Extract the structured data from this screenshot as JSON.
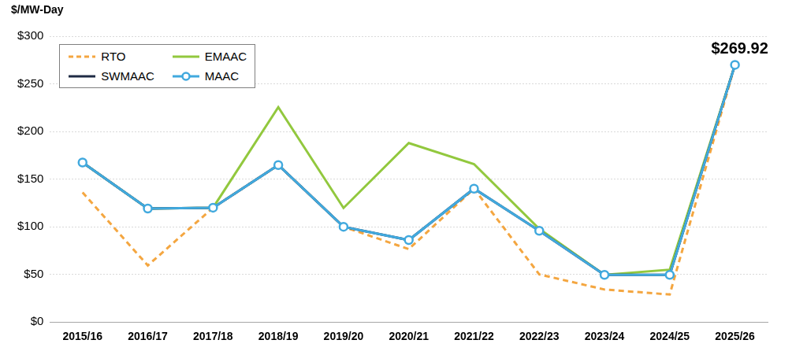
{
  "chart_data": {
    "type": "line",
    "y_label": "$/MW-Day",
    "categories": [
      "2015/16",
      "2016/17",
      "2017/18",
      "2018/19",
      "2019/20",
      "2020/21",
      "2021/22",
      "2022/23",
      "2023/24",
      "2024/25",
      "2025/26"
    ],
    "series": [
      {
        "name": "RTO",
        "color": "#f4a640",
        "line_style": "dashed",
        "marker": "none",
        "values": [
          136,
          59.37,
          120,
          164.77,
          100,
          76.53,
          140,
          50,
          34.13,
          28.92,
          269.92
        ]
      },
      {
        "name": "EMAAC",
        "color": "#92c83e",
        "line_style": "solid",
        "marker": "none",
        "values": [
          167.46,
          119.13,
          120,
          225.42,
          119.77,
          187.87,
          165.73,
          97.86,
          49.49,
          54.95,
          269.92
        ]
      },
      {
        "name": "SWMAAC",
        "color": "#1f2a44",
        "line_style": "solid",
        "marker": "none",
        "values": [
          167.46,
          119.13,
          120,
          164.77,
          100,
          86.04,
          140,
          95.79,
          49.49,
          49.49,
          269.92
        ]
      },
      {
        "name": "MAAC",
        "color": "#41a9de",
        "line_style": "solid",
        "marker": "circle",
        "values": [
          167.46,
          119.13,
          120,
          164.77,
          100,
          86.04,
          140,
          95.79,
          49.49,
          49.49,
          269.92
        ]
      }
    ],
    "ylim": [
      0,
      300
    ],
    "yticks": [
      {
        "value": 0,
        "label": "$0"
      },
      {
        "value": 50,
        "label": "$50"
      },
      {
        "value": 100,
        "label": "$100"
      },
      {
        "value": 150,
        "label": "$150"
      },
      {
        "value": 200,
        "label": "$200"
      },
      {
        "value": 250,
        "label": "$250"
      },
      {
        "value": 300,
        "label": "$300"
      }
    ],
    "grid": true,
    "legend": "upper left",
    "annotations": [
      {
        "text": "$269.92",
        "x": "2025/26",
        "y": 269.92
      }
    ]
  }
}
